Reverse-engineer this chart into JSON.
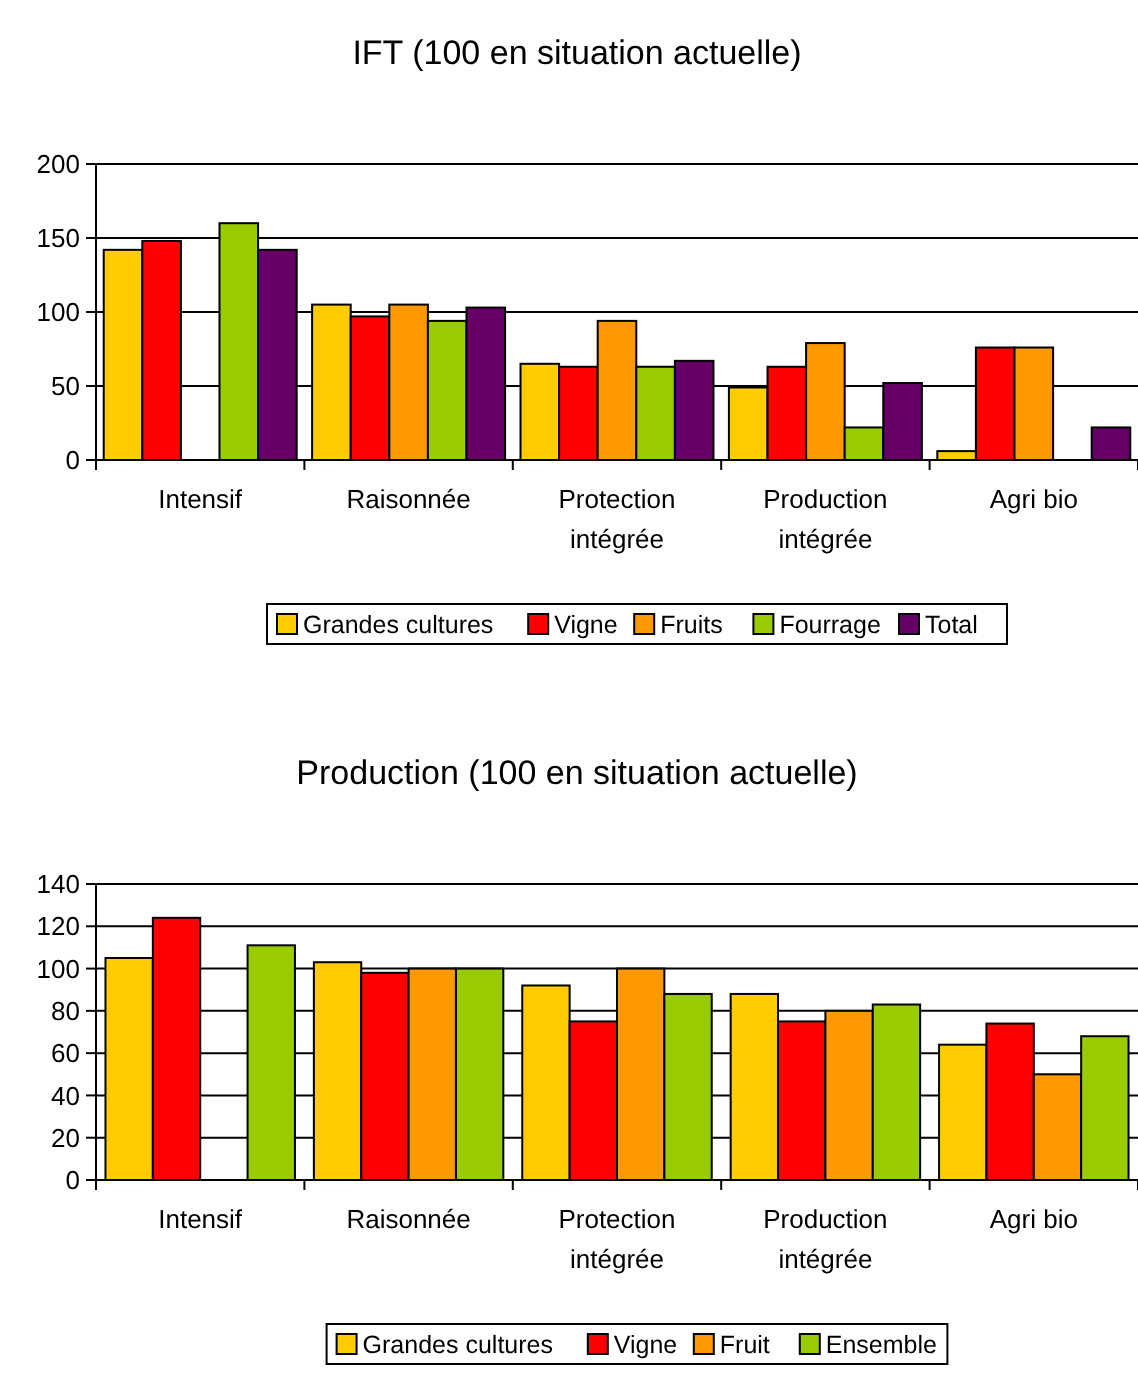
{
  "chart_data": [
    {
      "type": "bar",
      "title": "IFT (100 en situation actuelle)",
      "categories": [
        "Intensif",
        "Raisonnée",
        "Protection intégrée",
        "Production intégrée",
        "Agri bio"
      ],
      "series": [
        {
          "name": "Grandes cultures",
          "color": "#ffcc00",
          "values": [
            142,
            105,
            65,
            49,
            6
          ]
        },
        {
          "name": "Vigne",
          "color": "#ff0000",
          "values": [
            148,
            97,
            63,
            63,
            76
          ]
        },
        {
          "name": "Fruits",
          "color": "#ff9900",
          "values": [
            null,
            105,
            94,
            79,
            76
          ]
        },
        {
          "name": "Fourrage",
          "color": "#99cc00",
          "values": [
            160,
            94,
            63,
            22,
            null
          ]
        },
        {
          "name": "Total",
          "color": "#660066",
          "values": [
            142,
            103,
            67,
            52,
            22
          ]
        }
      ],
      "ylim": [
        0,
        200
      ],
      "yticks": [
        0,
        50,
        100,
        150,
        200
      ],
      "grid": "y",
      "legend": "bottom"
    },
    {
      "type": "bar",
      "title": "Production (100 en situation actuelle)",
      "categories": [
        "Intensif",
        "Raisonnée",
        "Protection intégrée",
        "Production intégrée",
        "Agri bio"
      ],
      "series": [
        {
          "name": "Grandes cultures",
          "color": "#ffcc00",
          "values": [
            105,
            103,
            92,
            88,
            64
          ]
        },
        {
          "name": "Vigne",
          "color": "#ff0000",
          "values": [
            124,
            98,
            75,
            75,
            74
          ]
        },
        {
          "name": "Fruit",
          "color": "#ff9900",
          "values": [
            null,
            100,
            100,
            80,
            50
          ]
        },
        {
          "name": "Ensemble",
          "color": "#99cc00",
          "values": [
            111,
            100,
            88,
            83,
            68
          ]
        }
      ],
      "ylim": [
        0,
        140
      ],
      "yticks": [
        0,
        20,
        40,
        60,
        80,
        100,
        120,
        140
      ],
      "grid": "y",
      "legend": "bottom"
    }
  ]
}
